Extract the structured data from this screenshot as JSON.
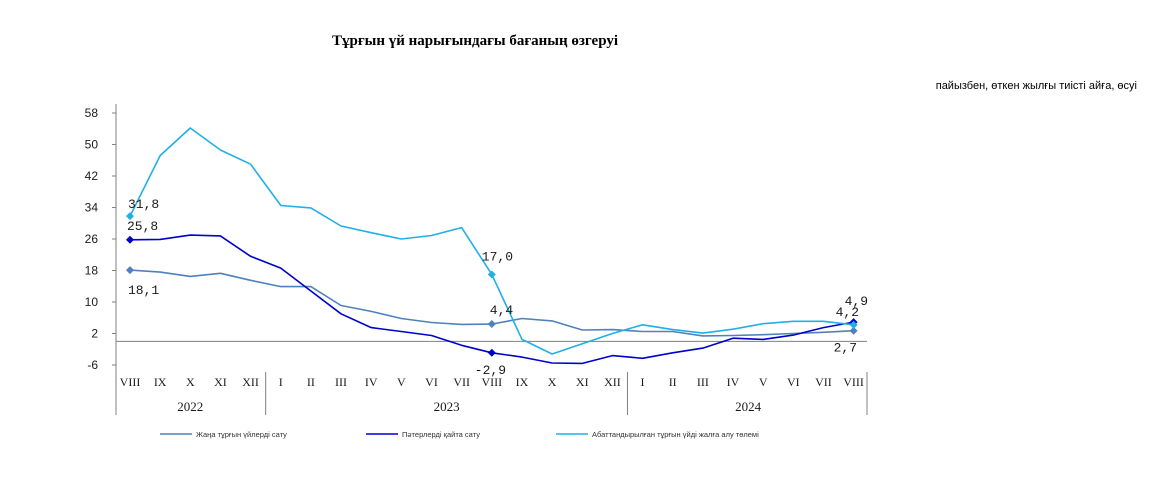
{
  "chart_data": {
    "type": "line",
    "title": "Тұрғын үй нарығындағы бағаның өзгеруі",
    "subtitle": "пайызбен, өткен жылғы тиісті айға, өсуі",
    "xlabel": "",
    "ylabel": "",
    "ylim": [
      -6,
      58
    ],
    "yticks": [
      58,
      50,
      42,
      34,
      26,
      18,
      10,
      2,
      -6
    ],
    "categories": [
      "VIII",
      "IX",
      "X",
      "XI",
      "XII",
      "I",
      "II",
      "III",
      "IV",
      "V",
      "VI",
      "VII",
      "VIII",
      "IX",
      "X",
      "XI",
      "XII",
      "I",
      "II",
      "III",
      "IV",
      "V",
      "VI",
      "VII",
      "VIII"
    ],
    "years": [
      {
        "label": "2022",
        "start": 0,
        "end": 4
      },
      {
        "label": "2023",
        "start": 5,
        "end": 16
      },
      {
        "label": "2024",
        "start": 17,
        "end": 24
      }
    ],
    "grid": false,
    "legend_position": "bottom",
    "series": [
      {
        "name": "Жаңа тұрғын үйлерді сату",
        "color": "#4f81bd",
        "values": [
          18.1,
          17.6,
          16.5,
          17.3,
          15.5,
          13.9,
          13.9,
          9.1,
          7.6,
          5.8,
          4.8,
          4.3,
          4.4,
          5.8,
          5.2,
          2.9,
          3.0,
          2.5,
          2.5,
          1.4,
          1.5,
          1.7,
          2.0,
          2.3,
          2.7
        ],
        "labels": [
          {
            "index": 0,
            "text": "18,1"
          },
          {
            "index": 12,
            "text": "4,4"
          },
          {
            "index": 24,
            "text": "2,7"
          }
        ]
      },
      {
        "name": "Пәтерлерді қайта сату",
        "color": "#0000cc",
        "values": [
          25.8,
          25.9,
          27.0,
          26.8,
          21.6,
          18.6,
          12.8,
          7.0,
          3.5,
          2.5,
          1.5,
          -1.0,
          -2.9,
          -4.0,
          -5.5,
          -5.6,
          -3.6,
          -4.3,
          -2.9,
          -1.7,
          0.8,
          0.5,
          1.6,
          3.5,
          4.9
        ],
        "labels": [
          {
            "index": 0,
            "text": "25,8"
          },
          {
            "index": 12,
            "text": "-2,9"
          },
          {
            "index": 24,
            "text": "4,9"
          }
        ]
      },
      {
        "name": "Абаттандырылған тұрғын үйді жалға алу төлемі",
        "color": "#1fb0e6",
        "values": [
          31.8,
          47.2,
          54.2,
          48.6,
          45.0,
          34.5,
          33.9,
          29.3,
          27.6,
          26.0,
          26.9,
          28.9,
          17.0,
          0.5,
          -3.2,
          -0.6,
          2.0,
          4.2,
          3.0,
          2.1,
          3.1,
          4.5,
          5.1,
          5.1,
          4.2
        ],
        "labels": [
          {
            "index": 0,
            "text": "31,8"
          },
          {
            "index": 12,
            "text": "17,0"
          },
          {
            "index": 24,
            "text": "4,2"
          }
        ]
      }
    ]
  }
}
